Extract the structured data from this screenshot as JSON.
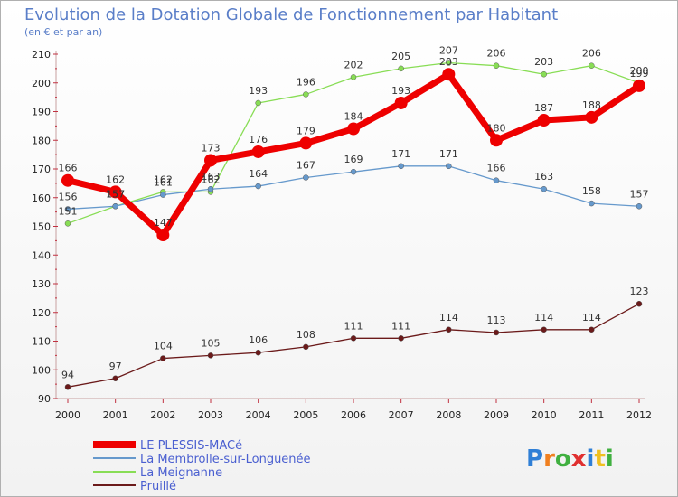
{
  "chart_data": {
    "type": "line",
    "title": "Evolution de la Dotation Globale de Fonctionnement par Habitant",
    "subtitle": "(en € et par an)",
    "x": [
      "2000",
      "2001",
      "2002",
      "2003",
      "2004",
      "2005",
      "2006",
      "2007",
      "2008",
      "2009",
      "2010",
      "2011",
      "2012"
    ],
    "ylim": [
      90,
      210
    ],
    "yticks": [
      90,
      100,
      110,
      120,
      130,
      140,
      150,
      160,
      170,
      180,
      190,
      200,
      210
    ],
    "grid": false,
    "legend_position": "bottom-left",
    "series": [
      {
        "name": "LE PLESSIS-MACé",
        "color": "#ee0000",
        "values": [
          166,
          162,
          147,
          173,
          176,
          179,
          184,
          193,
          203,
          180,
          187,
          188,
          199
        ]
      },
      {
        "name": "La Membrolle-sur-Longuenée",
        "color": "#6699cc",
        "values": [
          156,
          157,
          161,
          163,
          164,
          167,
          169,
          171,
          171,
          166,
          163,
          158,
          157
        ]
      },
      {
        "name": "La Meignanne",
        "color": "#88dd55",
        "values": [
          151,
          157,
          162,
          162,
          193,
          196,
          202,
          205,
          207,
          206,
          203,
          206,
          200
        ]
      },
      {
        "name": "Pruillé",
        "color": "#6b1a1a",
        "values": [
          94,
          97,
          104,
          105,
          106,
          108,
          111,
          111,
          114,
          113,
          114,
          114,
          123
        ]
      }
    ]
  },
  "logo": {
    "letters": [
      "P",
      "r",
      "o",
      "x",
      "i",
      "t",
      "i"
    ],
    "colors": [
      "#2f7fd6",
      "#f08020",
      "#40b040",
      "#e03030",
      "#2f7fd6",
      "#f0c020",
      "#40b040"
    ]
  }
}
